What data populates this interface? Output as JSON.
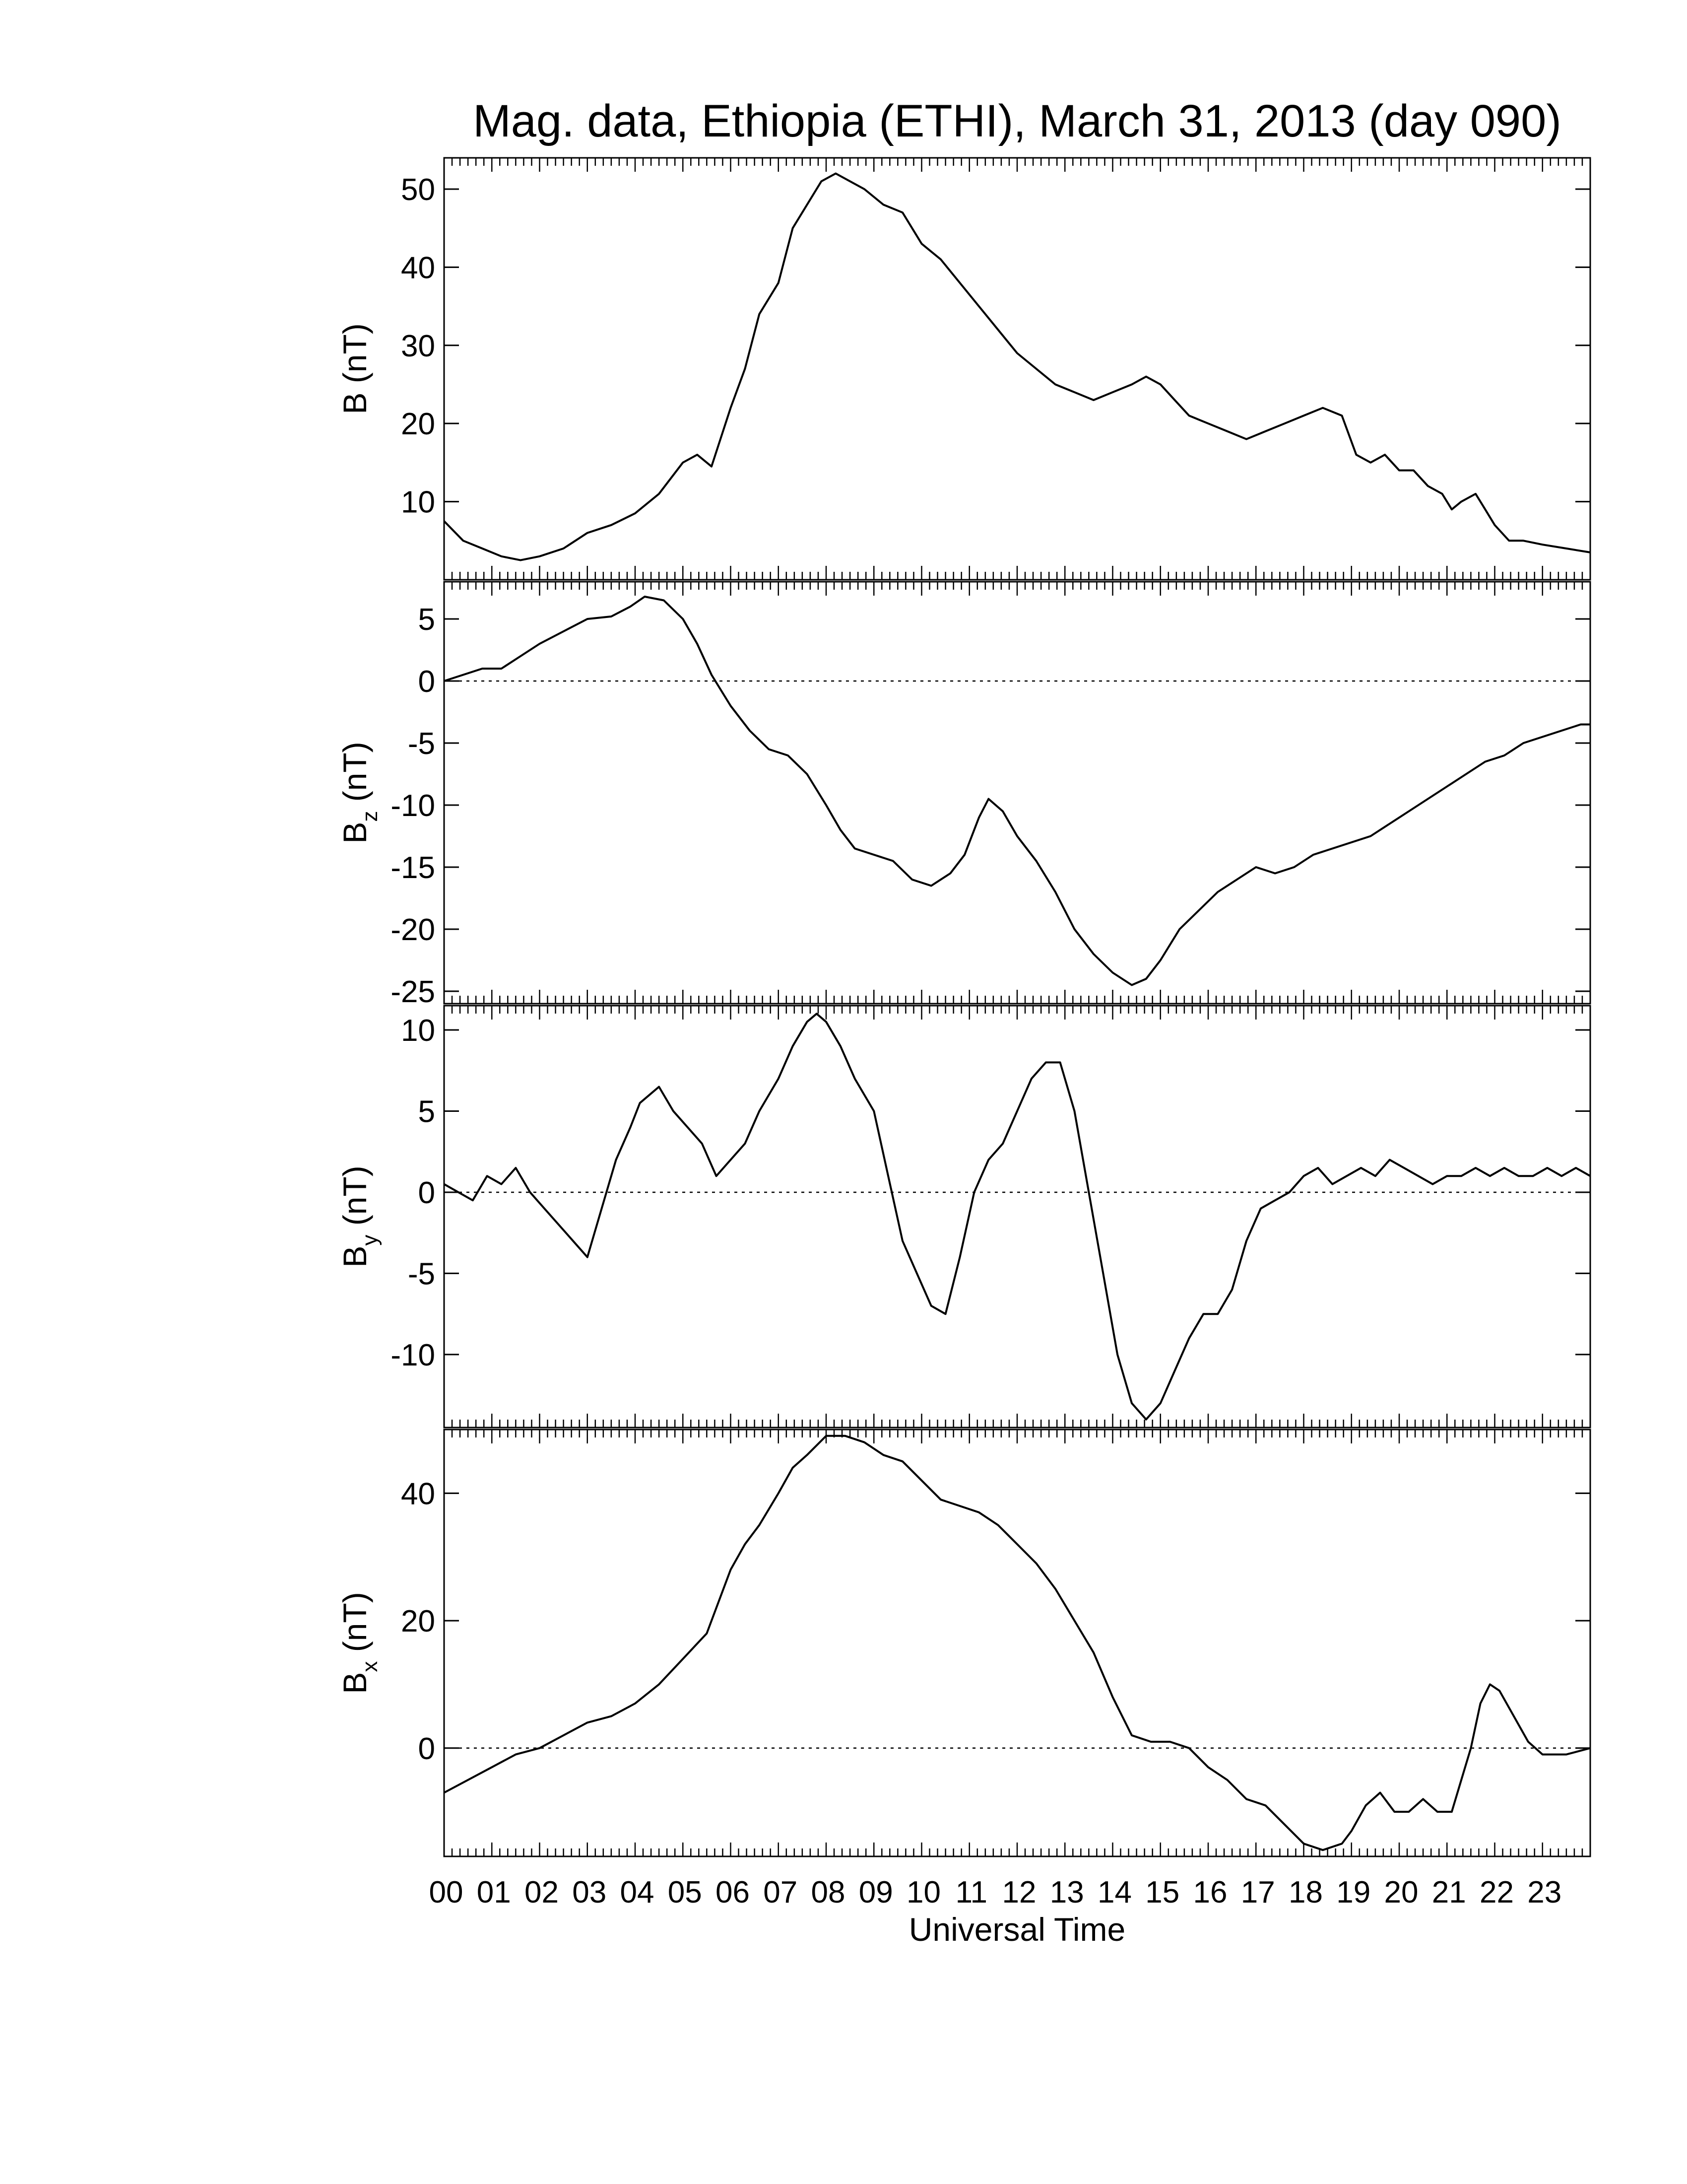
{
  "title": "Mag. data, Ethiopia (ETHI), March 31, 2013 (day 090)",
  "x_axis": {
    "label": "Universal Time",
    "range_hours": [
      0,
      24
    ],
    "tick_labels": [
      "00",
      "01",
      "02",
      "03",
      "04",
      "05",
      "06",
      "07",
      "08",
      "09",
      "10",
      "11",
      "12",
      "13",
      "14",
      "15",
      "16",
      "17",
      "18",
      "19",
      "20",
      "21",
      "22",
      "23"
    ]
  },
  "chart_data": [
    {
      "type": "line",
      "id": "B",
      "ylabel": {
        "base": "B",
        "sub": "",
        "unit": " (nT)"
      },
      "ylim": [
        0,
        54
      ],
      "yticks": [
        10,
        20,
        30,
        40,
        50
      ],
      "zero_line": false,
      "x_hours": [
        0,
        0.4,
        0.8,
        1.2,
        1.6,
        2,
        2.5,
        3,
        3.5,
        4,
        4.5,
        5,
        5.3,
        5.6,
        6,
        6.3,
        6.6,
        7,
        7.3,
        7.6,
        7.9,
        8.2,
        8.5,
        8.8,
        9.2,
        9.6,
        10,
        10.4,
        10.8,
        11.2,
        11.6,
        12,
        12.4,
        12.8,
        13.2,
        13.6,
        14,
        14.4,
        14.7,
        15,
        15.3,
        15.6,
        16,
        16.4,
        16.8,
        17.2,
        17.6,
        18,
        18.4,
        18.8,
        19.1,
        19.4,
        19.7,
        20,
        20.3,
        20.6,
        20.9,
        21.1,
        21.3,
        21.6,
        21.8,
        22,
        22.3,
        22.6,
        23,
        23.5,
        24
      ],
      "values": [
        7.5,
        5,
        4,
        3,
        2.5,
        3,
        4,
        6,
        7,
        8.5,
        11,
        15,
        16,
        14.5,
        22,
        27,
        34,
        38,
        45,
        48,
        51,
        52,
        51,
        50,
        48,
        47,
        43,
        41,
        38,
        35,
        32,
        29,
        27,
        25,
        24,
        23,
        24,
        25,
        26,
        25,
        23,
        21,
        20,
        19,
        18,
        19,
        20,
        21,
        22,
        21,
        16,
        15,
        16,
        14,
        14,
        12,
        11,
        9,
        10,
        11,
        9,
        7,
        5,
        5,
        4.5,
        4,
        3.5
      ]
    },
    {
      "type": "line",
      "id": "Bz",
      "ylabel": {
        "base": "B",
        "sub": "z",
        "unit": " (nT)"
      },
      "ylim": [
        -26,
        8
      ],
      "yticks": [
        -25,
        -20,
        -15,
        -10,
        -5,
        0,
        5
      ],
      "zero_line": true,
      "x_hours": [
        0,
        0.4,
        0.8,
        1.2,
        1.6,
        2,
        2.5,
        3,
        3.5,
        3.9,
        4.2,
        4.6,
        5,
        5.3,
        5.6,
        6,
        6.4,
        6.8,
        7.2,
        7.6,
        8,
        8.3,
        8.6,
        9,
        9.4,
        9.8,
        10.2,
        10.6,
        10.9,
        11.2,
        11.4,
        11.7,
        12,
        12.4,
        12.8,
        13.2,
        13.6,
        14,
        14.4,
        14.7,
        15,
        15.4,
        15.8,
        16.2,
        16.6,
        17,
        17.4,
        17.8,
        18.2,
        18.6,
        19,
        19.4,
        19.8,
        20.2,
        20.6,
        21,
        21.4,
        21.8,
        22.2,
        22.6,
        23,
        23.4,
        23.8,
        24
      ],
      "values": [
        0,
        0.5,
        1,
        1,
        2,
        3,
        4,
        5,
        5.2,
        6,
        6.8,
        6.5,
        5,
        3,
        0.5,
        -2,
        -4,
        -5.5,
        -6,
        -7.5,
        -10,
        -12,
        -13.5,
        -14,
        -14.5,
        -16,
        -16.5,
        -15.5,
        -14,
        -11,
        -9.5,
        -10.5,
        -12.5,
        -14.5,
        -17,
        -20,
        -22,
        -23.5,
        -24.5,
        -24,
        -22.5,
        -20,
        -18.5,
        -17,
        -16,
        -15,
        -15.5,
        -15,
        -14,
        -13.5,
        -13,
        -12.5,
        -11.5,
        -10.5,
        -9.5,
        -8.5,
        -7.5,
        -6.5,
        -6,
        -5,
        -4.5,
        -4,
        -3.5,
        -3.5
      ]
    },
    {
      "type": "line",
      "id": "By",
      "ylabel": {
        "base": "B",
        "sub": "y",
        "unit": " (nT)"
      },
      "ylim": [
        -14.5,
        11.5
      ],
      "yticks": [
        -10,
        -5,
        0,
        5,
        10
      ],
      "zero_line": true,
      "x_hours": [
        0,
        0.3,
        0.6,
        0.9,
        1.2,
        1.5,
        1.8,
        2.1,
        2.4,
        2.7,
        3,
        3.3,
        3.6,
        3.9,
        4.1,
        4.3,
        4.5,
        4.8,
        5.1,
        5.4,
        5.7,
        6,
        6.3,
        6.6,
        7,
        7.3,
        7.6,
        7.8,
        8,
        8.3,
        8.6,
        9,
        9.3,
        9.6,
        9.9,
        10.2,
        10.5,
        10.8,
        11.1,
        11.4,
        11.7,
        12,
        12.3,
        12.6,
        12.9,
        13.2,
        13.5,
        13.8,
        14.1,
        14.4,
        14.7,
        15,
        15.3,
        15.6,
        15.9,
        16.2,
        16.5,
        16.8,
        17.1,
        17.4,
        17.7,
        18,
        18.3,
        18.6,
        18.9,
        19.2,
        19.5,
        19.8,
        20.1,
        20.4,
        20.7,
        21,
        21.3,
        21.6,
        21.9,
        22.2,
        22.5,
        22.8,
        23.1,
        23.4,
        23.7,
        24
      ],
      "values": [
        0.5,
        0,
        -0.5,
        1,
        0.5,
        1.5,
        0,
        -1,
        -2,
        -3,
        -4,
        -1,
        2,
        4,
        5.5,
        6,
        6.5,
        5,
        4,
        3,
        1,
        2,
        3,
        5,
        7,
        9,
        10.5,
        11,
        10.5,
        9,
        7,
        5,
        1,
        -3,
        -5,
        -7,
        -7.5,
        -4,
        0,
        2,
        3,
        5,
        7,
        8,
        8,
        5,
        0,
        -5,
        -10,
        -13,
        -14,
        -13,
        -11,
        -9,
        -7.5,
        -7.5,
        -6,
        -3,
        -1,
        -0.5,
        0,
        1,
        1.5,
        0.5,
        1,
        1.5,
        1,
        2,
        1.5,
        1,
        0.5,
        1,
        1,
        1.5,
        1,
        1.5,
        1,
        1,
        1.5,
        1,
        1.5,
        1
      ]
    },
    {
      "type": "line",
      "id": "Bx",
      "ylabel": {
        "base": "B",
        "sub": "x",
        "unit": " (nT)"
      },
      "ylim": [
        -17,
        50
      ],
      "yticks": [
        0,
        20,
        40
      ],
      "zero_line": true,
      "x_hours": [
        0,
        0.5,
        1,
        1.5,
        2,
        2.5,
        3,
        3.5,
        4,
        4.5,
        5,
        5.5,
        6,
        6.3,
        6.6,
        7,
        7.3,
        7.6,
        8,
        8.4,
        8.8,
        9.2,
        9.6,
        10,
        10.4,
        10.8,
        11.2,
        11.6,
        12,
        12.4,
        12.8,
        13.2,
        13.6,
        14,
        14.4,
        14.8,
        15.2,
        15.6,
        16,
        16.4,
        16.8,
        17.2,
        17.6,
        18,
        18.4,
        18.8,
        19,
        19.3,
        19.6,
        19.9,
        20.2,
        20.5,
        20.8,
        21.1,
        21.3,
        21.5,
        21.7,
        21.9,
        22.1,
        22.4,
        22.7,
        23,
        23.5,
        24
      ],
      "values": [
        -7,
        -5,
        -3,
        -1,
        0,
        2,
        4,
        5,
        7,
        10,
        14,
        18,
        28,
        32,
        35,
        40,
        44,
        46,
        49,
        49,
        48,
        46,
        45,
        42,
        39,
        38,
        37,
        35,
        32,
        29,
        25,
        20,
        15,
        8,
        2,
        1,
        1,
        0,
        -3,
        -5,
        -8,
        -9,
        -12,
        -15,
        -16,
        -15,
        -13,
        -9,
        -7,
        -10,
        -10,
        -8,
        -10,
        -10,
        -5,
        0,
        7,
        10,
        9,
        5,
        1,
        -1,
        -1,
        0
      ]
    }
  ]
}
